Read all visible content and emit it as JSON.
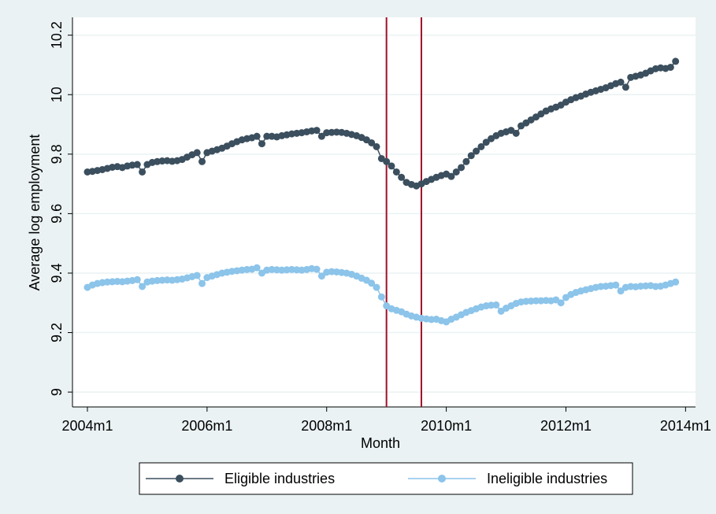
{
  "chart_data": {
    "type": "line",
    "x_label": "Month",
    "y_label": "Average log employment",
    "xlim": [
      525,
      650
    ],
    "ylim": [
      8.95,
      10.26
    ],
    "xticks": [
      {
        "value": 528,
        "label": "2004m1"
      },
      {
        "value": 552,
        "label": "2006m1"
      },
      {
        "value": 576,
        "label": "2008m1"
      },
      {
        "value": 600,
        "label": "2010m1"
      },
      {
        "value": 624,
        "label": "2012m1"
      },
      {
        "value": 648,
        "label": "2014m1"
      }
    ],
    "yticks": [
      9,
      9.2,
      9.4,
      9.6,
      9.8,
      10,
      10.2
    ],
    "grid": true,
    "vlines": [
      588,
      595
    ],
    "vline_color": "#a0102a",
    "legend_position": "bottom",
    "x": [
      528,
      529,
      530,
      531,
      532,
      533,
      534,
      535,
      536,
      537,
      538,
      539,
      540,
      541,
      542,
      543,
      544,
      545,
      546,
      547,
      548,
      549,
      550,
      551,
      552,
      553,
      554,
      555,
      556,
      557,
      558,
      559,
      560,
      561,
      562,
      563,
      564,
      565,
      566,
      567,
      568,
      569,
      570,
      571,
      572,
      573,
      574,
      575,
      576,
      577,
      578,
      579,
      580,
      581,
      582,
      583,
      584,
      585,
      586,
      587,
      588,
      589,
      590,
      591,
      592,
      593,
      594,
      595,
      596,
      597,
      598,
      599,
      600,
      601,
      602,
      603,
      604,
      605,
      606,
      607,
      608,
      609,
      610,
      611,
      612,
      613,
      614,
      615,
      616,
      617,
      618,
      619,
      620,
      621,
      622,
      623,
      624,
      625,
      626,
      627,
      628,
      629,
      630,
      631,
      632,
      633,
      634,
      635,
      636,
      637,
      638,
      639,
      640,
      641,
      642,
      643,
      644,
      645,
      646
    ],
    "series": [
      {
        "name": "Eligible industries",
        "color": "#3b4f5e",
        "values": [
          9.74,
          9.742,
          9.745,
          9.748,
          9.752,
          9.756,
          9.758,
          9.755,
          9.76,
          9.763,
          9.765,
          9.74,
          9.765,
          9.772,
          9.775,
          9.777,
          9.778,
          9.776,
          9.778,
          9.782,
          9.79,
          9.798,
          9.805,
          9.775,
          9.805,
          9.81,
          9.815,
          9.82,
          9.827,
          9.835,
          9.842,
          9.848,
          9.852,
          9.855,
          9.86,
          9.835,
          9.86,
          9.86,
          9.858,
          9.862,
          9.865,
          9.868,
          9.87,
          9.872,
          9.875,
          9.878,
          9.88,
          9.86,
          9.872,
          9.873,
          9.874,
          9.873,
          9.87,
          9.866,
          9.862,
          9.856,
          9.848,
          9.838,
          9.825,
          9.785,
          9.775,
          9.76,
          9.74,
          9.722,
          9.705,
          9.698,
          9.693,
          9.7,
          9.708,
          9.715,
          9.722,
          9.728,
          9.733,
          9.725,
          9.74,
          9.755,
          9.775,
          9.795,
          9.81,
          9.825,
          9.84,
          9.852,
          9.862,
          9.87,
          9.875,
          9.88,
          9.87,
          9.895,
          9.905,
          9.915,
          9.925,
          9.935,
          9.945,
          9.952,
          9.958,
          9.965,
          9.975,
          9.983,
          9.99,
          9.995,
          10.002,
          10.008,
          10.013,
          10.018,
          10.023,
          10.03,
          10.037,
          10.042,
          10.025,
          10.058,
          10.062,
          10.066,
          10.072,
          10.08,
          10.087,
          10.09,
          10.088,
          10.092,
          10.112
        ]
      },
      {
        "name": "Ineligible industries",
        "color": "#8cc4ea",
        "values": [
          9.352,
          9.36,
          9.365,
          9.368,
          9.37,
          9.371,
          9.372,
          9.371,
          9.373,
          9.375,
          9.378,
          9.355,
          9.37,
          9.373,
          9.375,
          9.376,
          9.377,
          9.376,
          9.378,
          9.38,
          9.384,
          9.388,
          9.392,
          9.365,
          9.385,
          9.39,
          9.395,
          9.4,
          9.403,
          9.406,
          9.408,
          9.41,
          9.412,
          9.413,
          9.418,
          9.4,
          9.41,
          9.412,
          9.411,
          9.41,
          9.411,
          9.412,
          9.411,
          9.41,
          9.412,
          9.415,
          9.413,
          9.39,
          9.403,
          9.405,
          9.404,
          9.402,
          9.4,
          9.396,
          9.39,
          9.383,
          9.376,
          9.366,
          9.352,
          9.32,
          9.29,
          9.28,
          9.275,
          9.27,
          9.262,
          9.256,
          9.252,
          9.248,
          9.246,
          9.244,
          9.245,
          9.24,
          9.236,
          9.245,
          9.252,
          9.26,
          9.268,
          9.274,
          9.28,
          9.286,
          9.29,
          9.292,
          9.293,
          9.272,
          9.282,
          9.29,
          9.298,
          9.303,
          9.305,
          9.306,
          9.307,
          9.307,
          9.308,
          9.307,
          9.31,
          9.3,
          9.318,
          9.328,
          9.335,
          9.34,
          9.344,
          9.348,
          9.352,
          9.355,
          9.356,
          9.358,
          9.36,
          9.34,
          9.352,
          9.355,
          9.354,
          9.356,
          9.357,
          9.358,
          9.355,
          9.356,
          9.36,
          9.365,
          9.37
        ]
      }
    ]
  }
}
